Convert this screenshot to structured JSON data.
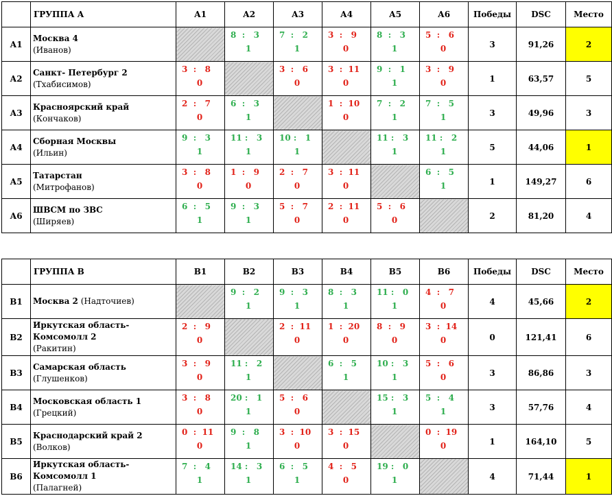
{
  "groups": [
    {
      "title": "ГРУППА А",
      "cols": [
        "А1",
        "А2",
        "А3",
        "А4",
        "А5",
        "А6"
      ],
      "h_wins": "Победы",
      "h_dsc": "DSC",
      "h_place": "Место",
      "rows": [
        {
          "code": "А1",
          "team": "Москва 4",
          "captain": "(Иванов)",
          "wins": "3",
          "dsc": "91,26",
          "place": "2",
          "hl": true,
          "res": [
            null,
            {
              "a": "8",
              "b": "3",
              "p": "1",
              "w": true
            },
            {
              "a": "7",
              "b": "2",
              "p": "1",
              "w": true
            },
            {
              "a": "3",
              "b": "9",
              "p": "0",
              "w": false
            },
            {
              "a": "8",
              "b": "3",
              "p": "1",
              "w": true
            },
            {
              "a": "5",
              "b": "6",
              "p": "0",
              "w": false
            }
          ]
        },
        {
          "code": "А2",
          "team": "Санкт- Петербург 2",
          "captain": "(Тхабисимов)",
          "wins": "1",
          "dsc": "63,57",
          "place": "5",
          "hl": false,
          "res": [
            {
              "a": "3",
              "b": "8",
              "p": "0",
              "w": false
            },
            null,
            {
              "a": "3",
              "b": "6",
              "p": "0",
              "w": false
            },
            {
              "a": "3",
              "b": "11",
              "p": "0",
              "w": false
            },
            {
              "a": "9",
              "b": "1",
              "p": "1",
              "w": true
            },
            {
              "a": "3",
              "b": "9",
              "p": "0",
              "w": false
            }
          ]
        },
        {
          "code": "А3",
          "team": "Красноярский край",
          "captain": "(Кончаков)",
          "wins": "3",
          "dsc": "49,96",
          "place": "3",
          "hl": false,
          "res": [
            {
              "a": "2",
              "b": "7",
              "p": "0",
              "w": false
            },
            {
              "a": "6",
              "b": "3",
              "p": "1",
              "w": true
            },
            null,
            {
              "a": "1",
              "b": "10",
              "p": "0",
              "w": false
            },
            {
              "a": "7",
              "b": "2",
              "p": "1",
              "w": true
            },
            {
              "a": "7",
              "b": "5",
              "p": "1",
              "w": true
            }
          ]
        },
        {
          "code": "А4",
          "team": "Сборная Москвы",
          "captain": "(Ильин)",
          "wins": "5",
          "dsc": "44,06",
          "place": "1",
          "hl": true,
          "res": [
            {
              "a": "9",
              "b": "3",
              "p": "1",
              "w": true
            },
            {
              "a": "11",
              "b": "3",
              "p": "1",
              "w": true
            },
            {
              "a": "10",
              "b": "1",
              "p": "1",
              "w": true
            },
            null,
            {
              "a": "11",
              "b": "3",
              "p": "1",
              "w": true
            },
            {
              "a": "11",
              "b": "2",
              "p": "1",
              "w": true
            }
          ]
        },
        {
          "code": "А5",
          "team": "Татарстан",
          "captain": "(Митрофанов)",
          "wins": "1",
          "dsc": "149,27",
          "place": "6",
          "hl": false,
          "res": [
            {
              "a": "3",
              "b": "8",
              "p": "0",
              "w": false
            },
            {
              "a": "1",
              "b": "9",
              "p": "0",
              "w": false
            },
            {
              "a": "2",
              "b": "7",
              "p": "0",
              "w": false
            },
            {
              "a": "3",
              "b": "11",
              "p": "0",
              "w": false
            },
            null,
            {
              "a": "6",
              "b": "5",
              "p": "1",
              "w": true
            }
          ]
        },
        {
          "code": "А6",
          "team": "ШВСМ по ЗВС",
          "captain": "(Ширяев)",
          "wins": "2",
          "dsc": "81,20",
          "place": "4",
          "hl": false,
          "res": [
            {
              "a": "6",
              "b": "5",
              "p": "1",
              "w": true
            },
            {
              "a": "9",
              "b": "3",
              "p": "1",
              "w": true
            },
            {
              "a": "5",
              "b": "7",
              "p": "0",
              "w": false
            },
            {
              "a": "2",
              "b": "11",
              "p": "0",
              "w": false
            },
            {
              "a": "5",
              "b": "6",
              "p": "0",
              "w": false
            },
            null
          ]
        }
      ]
    },
    {
      "title": "ГРУППА В",
      "cols": [
        "В1",
        "В2",
        "В3",
        "В4",
        "В5",
        "В6"
      ],
      "h_wins": "Победы",
      "h_dsc": "DSC",
      "h_place": "Место",
      "rows": [
        {
          "code": "В1",
          "team": "Москва 2",
          "captain_inline": "(Надточиев)",
          "wins": "4",
          "dsc": "45,66",
          "place": "2",
          "hl": true,
          "res": [
            null,
            {
              "a": "9",
              "b": "2",
              "p": "1",
              "w": true
            },
            {
              "a": "9",
              "b": "3",
              "p": "1",
              "w": true
            },
            {
              "a": "8",
              "b": "3",
              "p": "1",
              "w": true
            },
            {
              "a": "11",
              "b": "0",
              "p": "1",
              "w": true
            },
            {
              "a": "4",
              "b": "7",
              "p": "0",
              "w": false
            }
          ]
        },
        {
          "code": "В2",
          "team": "Иркутская область-",
          "team2": "Комсомолл 2",
          "captain": "(Ракитин)",
          "wins": "0",
          "dsc": "121,41",
          "place": "6",
          "hl": false,
          "res": [
            {
              "a": "2",
              "b": "9",
              "p": "0",
              "w": false
            },
            null,
            {
              "a": "2",
              "b": "11",
              "p": "0",
              "w": false
            },
            {
              "a": "1",
              "b": "20",
              "p": "0",
              "w": false
            },
            {
              "a": "8",
              "b": "9",
              "p": "0",
              "w": false
            },
            {
              "a": "3",
              "b": "14",
              "p": "0",
              "w": false
            }
          ]
        },
        {
          "code": "В3",
          "team": "Самарская область",
          "captain": "(Глушенков)",
          "wins": "3",
          "dsc": "86,86",
          "place": "3",
          "hl": false,
          "res": [
            {
              "a": "3",
              "b": "9",
              "p": "0",
              "w": false
            },
            {
              "a": "11",
              "b": "2",
              "p": "1",
              "w": true
            },
            null,
            {
              "a": "6",
              "b": "5",
              "p": "1",
              "w": true
            },
            {
              "a": "10",
              "b": "3",
              "p": "1",
              "w": true
            },
            {
              "a": "5",
              "b": "6",
              "p": "0",
              "w": false
            }
          ]
        },
        {
          "code": "В4",
          "team": "Московская область 1",
          "captain": "(Грецкий)",
          "wins": "3",
          "dsc": "57,76",
          "place": "4",
          "hl": false,
          "res": [
            {
              "a": "3",
              "b": "8",
              "p": "0",
              "w": false
            },
            {
              "a": "20",
              "b": "1",
              "p": "1",
              "w": true
            },
            {
              "a": "5",
              "b": "6",
              "p": "0",
              "w": false
            },
            null,
            {
              "a": "15",
              "b": "3",
              "p": "1",
              "w": true
            },
            {
              "a": "5",
              "b": "4",
              "p": "1",
              "w": true
            }
          ]
        },
        {
          "code": "В5",
          "team": "Краснодарский край 2",
          "captain": "(Волков)",
          "wins": "1",
          "dsc": "164,10",
          "place": "5",
          "hl": false,
          "res": [
            {
              "a": "0",
              "b": "11",
              "p": "0",
              "w": false
            },
            {
              "a": "9",
              "b": "8",
              "p": "1",
              "w": true
            },
            {
              "a": "3",
              "b": "10",
              "p": "0",
              "w": false
            },
            {
              "a": "3",
              "b": "15",
              "p": "0",
              "w": false
            },
            null,
            {
              "a": "0",
              "b": "19",
              "p": "0",
              "w": false
            }
          ]
        },
        {
          "code": "В6",
          "team": "Иркутская область-",
          "team2": "Комсомолл 1",
          "captain": "(Палагней)",
          "wins": "4",
          "dsc": "71,44",
          "place": "1",
          "hl": true,
          "res": [
            {
              "a": "7",
              "b": "4",
              "p": "1",
              "w": true
            },
            {
              "a": "14",
              "b": "3",
              "p": "1",
              "w": true
            },
            {
              "a": "6",
              "b": "5",
              "p": "1",
              "w": true
            },
            {
              "a": "4",
              "b": "5",
              "p": "0",
              "w": false
            },
            {
              "a": "19",
              "b": "0",
              "p": "1",
              "w": true
            },
            null
          ]
        }
      ]
    }
  ]
}
